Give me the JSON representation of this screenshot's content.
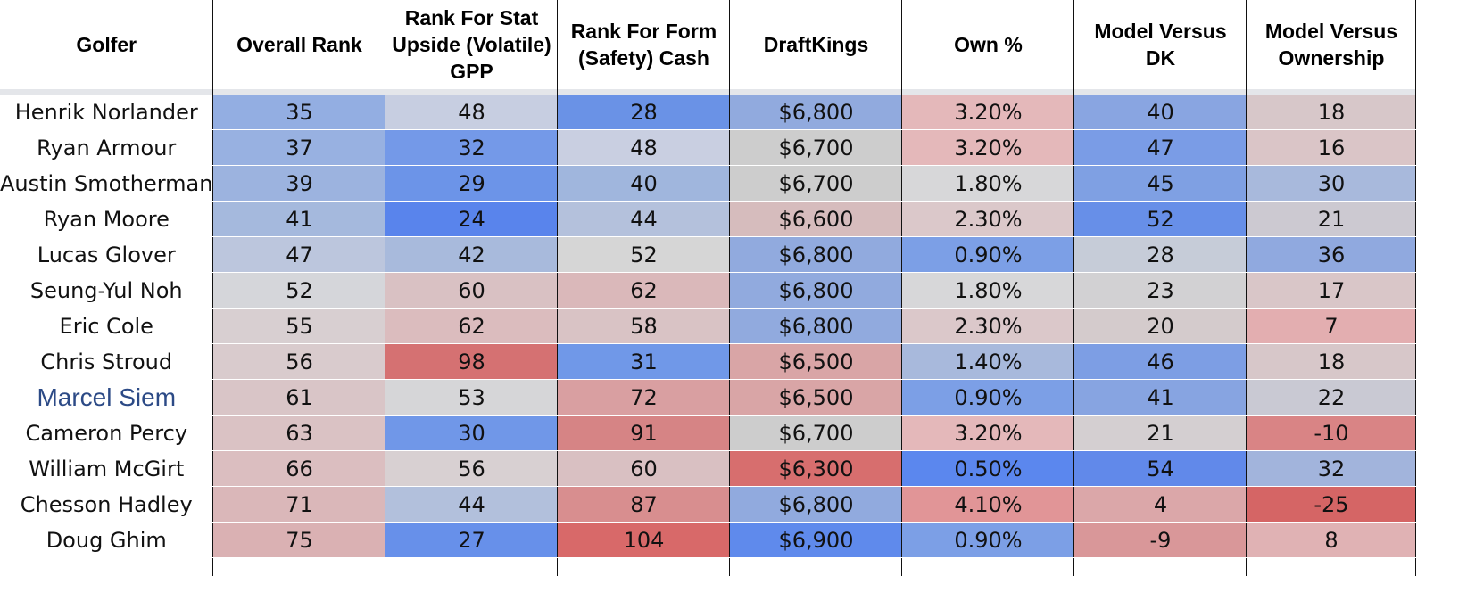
{
  "table": {
    "headers": [
      "Golfer",
      "Overall Rank",
      "Rank For Stat Upside (Volatile) GPP",
      "Rank For Form (Safety) Cash",
      "DraftKings",
      "Own %",
      "Model Versus DK",
      "Model Versus Ownership"
    ],
    "rows": [
      {
        "name": "Henrik Norlander",
        "cells": [
          "35",
          "48",
          "28",
          "$6,800",
          "3.20%",
          "40",
          "18"
        ],
        "colors": [
          "#93aee2",
          "#c7cee1",
          "#6a92e6",
          "#91aade",
          "#e4b8ba",
          "#89a5e1",
          "#d7c7c9"
        ]
      },
      {
        "name": "Ryan Armour",
        "cells": [
          "37",
          "32",
          "48",
          "$6,700",
          "3.20%",
          "47",
          "16"
        ],
        "colors": [
          "#98b1e1",
          "#7499e8",
          "#c9cfe1",
          "#cdcdcd",
          "#e4b8ba",
          "#7a9ce6",
          "#dac5c7"
        ]
      },
      {
        "name": "Austin Smotherman",
        "cells": [
          "39",
          "29",
          "40",
          "$6,700",
          "1.80%",
          "45",
          "30"
        ],
        "colors": [
          "#9cb3df",
          "#6c94e8",
          "#a0b6dd",
          "#cdcdcd",
          "#d7d7d9",
          "#7fa0e3",
          "#a8b9dc"
        ]
      },
      {
        "name": "Ryan Moore",
        "cells": [
          "41",
          "24",
          "44",
          "$6,600",
          "2.30%",
          "52",
          "21"
        ],
        "colors": [
          "#a5b9dd",
          "#5984ec",
          "#b4c1dc",
          "#d6bcbd",
          "#dbc8ca",
          "#678fe8",
          "#ccc9d1"
        ]
      },
      {
        "name": "Lucas Glover",
        "cells": [
          "47",
          "42",
          "52",
          "$6,800",
          "0.90%",
          "28",
          "36"
        ],
        "colors": [
          "#bcc6dd",
          "#a8badc",
          "#d6d6d6",
          "#91aade",
          "#7c9fe6",
          "#c6ccd8",
          "#90a9df"
        ]
      },
      {
        "name": "Seung-Yul Noh",
        "cells": [
          "52",
          "60",
          "62",
          "$6,800",
          "1.80%",
          "23",
          "17"
        ],
        "colors": [
          "#d5d6da",
          "#d9c1c3",
          "#dab8ba",
          "#91aade",
          "#d7d7d9",
          "#d2d1d3",
          "#d9c6c8"
        ]
      },
      {
        "name": "Eric Cole",
        "cells": [
          "55",
          "62",
          "58",
          "$6,800",
          "2.30%",
          "20",
          "7"
        ],
        "colors": [
          "#d8cfd1",
          "#dbbcbe",
          "#d9c3c5",
          "#91aade",
          "#dbc8ca",
          "#d4cbcc",
          "#e3aeb0"
        ]
      },
      {
        "name": "Chris Stroud",
        "cells": [
          "56",
          "98",
          "31",
          "$6,500",
          "1.40%",
          "46",
          "18"
        ],
        "colors": [
          "#d9cbcd",
          "#d57172",
          "#7098e8",
          "#d9a5a6",
          "#a8b9dc",
          "#7d9ee4",
          "#d7c7c9"
        ]
      },
      {
        "name": "Marcel Siem",
        "cells": [
          "61",
          "53",
          "72",
          "$6,500",
          "0.90%",
          "41",
          "22"
        ],
        "colors": [
          "#d9c5c7",
          "#d6d6d8",
          "#d99fa1",
          "#d9a5a6",
          "#7c9fe6",
          "#87a4e1",
          "#c9c9d3"
        ]
      },
      {
        "name": "Cameron Percy",
        "cells": [
          "63",
          "30",
          "91",
          "$6,700",
          "3.20%",
          "21",
          "-10"
        ],
        "colors": [
          "#dac2c4",
          "#7097e8",
          "#d68485",
          "#cdcdcd",
          "#e4b8ba",
          "#d4cfd1",
          "#d98485"
        ]
      },
      {
        "name": "William McGirt",
        "cells": [
          "66",
          "56",
          "60",
          "$6,300",
          "0.50%",
          "54",
          "32"
        ],
        "colors": [
          "#dbbec0",
          "#d8d0d2",
          "#d9c0c2",
          "#d76e6e",
          "#5b87ee",
          "#6189ea",
          "#a2b4dc"
        ]
      },
      {
        "name": "Chesson Hadley",
        "cells": [
          "71",
          "44",
          "87",
          "$6,800",
          "4.10%",
          "4",
          "-25"
        ],
        "colors": [
          "#dab7b9",
          "#b2c0dc",
          "#d88e8f",
          "#91aade",
          "#e19597",
          "#dba7a9",
          "#d56565"
        ]
      },
      {
        "name": "Doug Ghim",
        "cells": [
          "75",
          "27",
          "104",
          "$6,900",
          "0.90%",
          "-9",
          "8"
        ],
        "colors": [
          "#dab1b3",
          "#6790ea",
          "#d86969",
          "#5f8aec",
          "#7c9fe6",
          "#d99799",
          "#e0b2b4"
        ]
      }
    ],
    "highlight_row": "Marcel Siem"
  }
}
